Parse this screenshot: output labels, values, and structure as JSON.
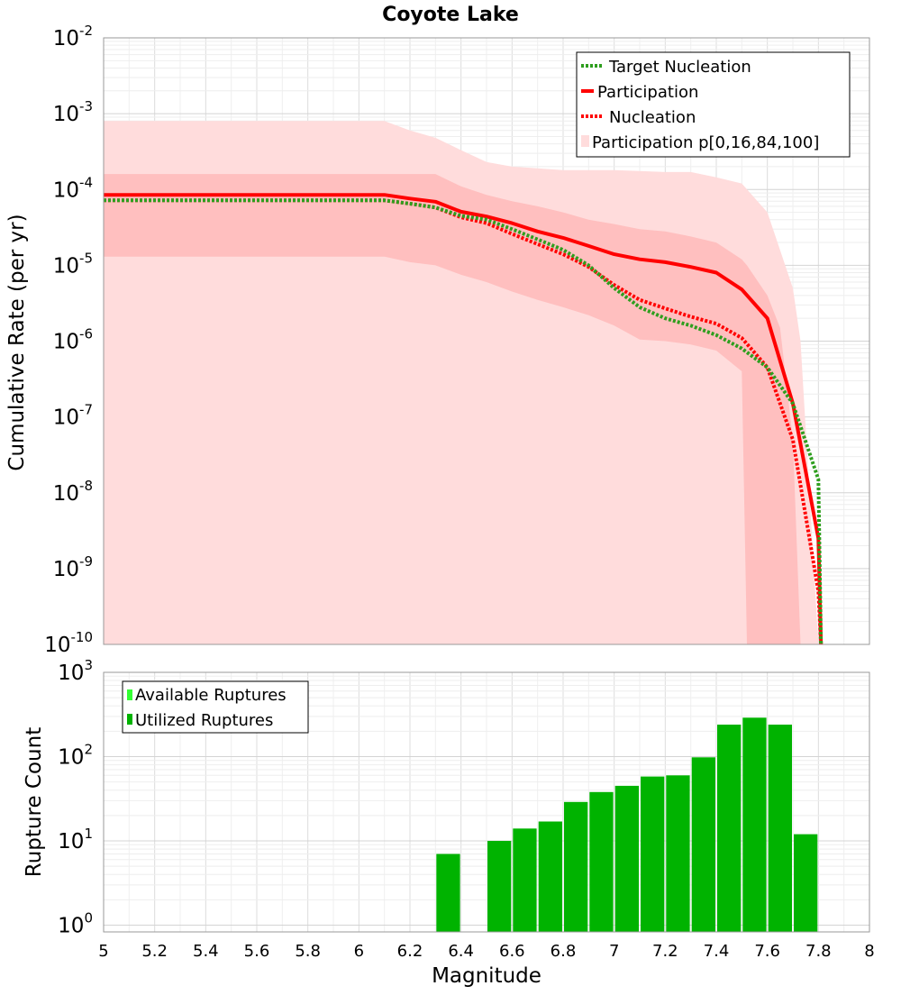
{
  "chart_data": [
    {
      "type": "line",
      "title": "Coyote Lake",
      "xlabel": "",
      "ylabel": "Cumulative Rate (per yr)",
      "yscale": "log",
      "xlim": [
        5,
        8
      ],
      "ylim_exponents": [
        -10,
        -2
      ],
      "ytick_exponents": [
        -10,
        -9,
        -8,
        -7,
        -6,
        -5,
        -4,
        -3,
        -2
      ],
      "legend_position": "top-right",
      "grid": true,
      "legend": [
        "Target Nucleation",
        "Participation",
        "Nucleation",
        "Participation p[0,16,84,100]"
      ],
      "series": [
        {
          "name": "Target Nucleation",
          "style": "dotted",
          "color": "#2e9e1e",
          "x": [
            5.0,
            5.5,
            6.0,
            6.1,
            6.2,
            6.3,
            6.4,
            6.5,
            6.6,
            6.7,
            6.8,
            6.9,
            7.0,
            7.1,
            7.2,
            7.3,
            7.4,
            7.5,
            7.6,
            7.7,
            7.8,
            7.81
          ],
          "y": [
            7.2e-05,
            7.2e-05,
            7.2e-05,
            7.2e-05,
            6.5e-05,
            5.8e-05,
            4.5e-05,
            4e-05,
            3e-05,
            2.2e-05,
            1.6e-05,
            1e-05,
            5e-06,
            2.8e-06,
            2e-06,
            1.6e-06,
            1.2e-06,
            8e-07,
            4.5e-07,
            1.5e-07,
            1.5e-08,
            1e-10
          ]
        },
        {
          "name": "Participation",
          "style": "solid",
          "color": "#ff0000",
          "x": [
            5.0,
            5.5,
            6.0,
            6.1,
            6.2,
            6.3,
            6.4,
            6.5,
            6.6,
            6.7,
            6.8,
            6.9,
            7.0,
            7.1,
            7.2,
            7.3,
            7.4,
            7.5,
            7.6,
            7.7,
            7.8,
            7.81
          ],
          "y": [
            8.5e-05,
            8.5e-05,
            8.5e-05,
            8.5e-05,
            7.6e-05,
            6.9e-05,
            5.1e-05,
            4.4e-05,
            3.6e-05,
            2.8e-05,
            2.3e-05,
            1.8e-05,
            1.4e-05,
            1.2e-05,
            1.1e-05,
            9.5e-06,
            8e-06,
            4.8e-06,
            2e-06,
            1.5e-07,
            2.5e-09,
            1e-10
          ]
        },
        {
          "name": "Nucleation",
          "style": "dotted",
          "color": "#ff0000",
          "x": [
            5.0,
            5.5,
            6.0,
            6.1,
            6.2,
            6.3,
            6.4,
            6.5,
            6.6,
            6.7,
            6.8,
            6.9,
            7.0,
            7.1,
            7.2,
            7.3,
            7.4,
            7.5,
            7.6,
            7.7,
            7.8,
            7.81
          ],
          "y": [
            7.2e-05,
            7.2e-05,
            7.2e-05,
            7.2e-05,
            6.5e-05,
            5.8e-05,
            4.3e-05,
            3.6e-05,
            2.6e-05,
            1.9e-05,
            1.4e-05,
            9.5e-06,
            5.5e-06,
            3.5e-06,
            2.7e-06,
            2.1e-06,
            1.7e-06,
            1.1e-06,
            4.5e-07,
            5e-08,
            5e-10,
            1e-10
          ]
        }
      ],
      "bands": [
        {
          "name": "Participation p[0,16,84,100]",
          "color": "#ffdcdc",
          "x": [
            5.0,
            5.5,
            6.0,
            6.1,
            6.2,
            6.3,
            6.4,
            6.5,
            6.6,
            6.7,
            6.8,
            6.9,
            7.0,
            7.1,
            7.2,
            7.3,
            7.4,
            7.5,
            7.6,
            7.7,
            7.73,
            7.8
          ],
          "upper": [
            0.0008,
            0.0008,
            0.0008,
            0.0008,
            0.0006,
            0.00048,
            0.00033,
            0.00023,
            0.0002,
            0.00019,
            0.00018,
            0.00018,
            0.00018,
            0.000175,
            0.00017,
            0.00017,
            0.000145,
            0.00012,
            5e-05,
            5e-06,
            1e-06,
            1e-10
          ],
          "lower": [
            1e-10,
            1e-10,
            1e-10,
            1e-10,
            1e-10,
            1e-10,
            1e-10,
            1e-10,
            1e-10,
            1e-10,
            1e-10,
            1e-10,
            1e-10,
            1e-10,
            1e-10,
            1e-10,
            1e-10,
            1e-10,
            1e-10,
            1e-10,
            1e-10,
            1e-10
          ]
        },
        {
          "name": "p16-p84",
          "color": "#ffbfbf",
          "x": [
            5.0,
            5.5,
            6.0,
            6.1,
            6.2,
            6.3,
            6.4,
            6.5,
            6.6,
            6.7,
            6.8,
            6.9,
            7.0,
            7.1,
            7.2,
            7.3,
            7.4,
            7.5,
            7.52,
            7.6,
            7.65,
            7.7,
            7.73
          ],
          "upper": [
            0.00016,
            0.00016,
            0.00016,
            0.00016,
            0.00016,
            0.00016,
            0.00011,
            8.5e-05,
            7e-05,
            6e-05,
            5e-05,
            4e-05,
            3.5e-05,
            3e-05,
            2.8e-05,
            2.4e-05,
            2e-05,
            1.2e-05,
            1e-05,
            4e-06,
            1.5e-06,
            5e-08,
            1e-10
          ],
          "lower": [
            1.3e-05,
            1.3e-05,
            1.3e-05,
            1.3e-05,
            1.1e-05,
            1e-05,
            7.5e-06,
            6e-06,
            4.5e-06,
            3.5e-06,
            2.8e-06,
            2.2e-06,
            1.6e-06,
            1.05e-06,
            1e-06,
            9e-07,
            7.5e-07,
            4e-07,
            1e-10,
            1e-10,
            1e-10,
            1e-10,
            1e-10
          ]
        }
      ]
    },
    {
      "type": "bar",
      "title": "",
      "xlabel": "Magnitude",
      "ylabel": "Rupture Count",
      "yscale": "log",
      "xlim": [
        5,
        8
      ],
      "ylim_exponents": [
        0,
        3
      ],
      "ytick_exponents": [
        0,
        1,
        2,
        3
      ],
      "xticks": [
        "5",
        "5.2",
        "5.4",
        "5.6",
        "5.8",
        "6",
        "6.2",
        "6.4",
        "6.6",
        "6.8",
        "7",
        "7.2",
        "7.4",
        "7.6",
        "7.8",
        "8"
      ],
      "legend_position": "top-left",
      "grid": true,
      "legend": [
        "Available Ruptures",
        "Utilized Ruptures"
      ],
      "colors": {
        "available": "#33ff33",
        "utilized": "#00b300"
      },
      "bin_width": 0.1,
      "bins": [
        {
          "x": 6.35,
          "value": 7
        },
        {
          "x": 6.55,
          "value": 10
        },
        {
          "x": 6.65,
          "value": 14
        },
        {
          "x": 6.75,
          "value": 17
        },
        {
          "x": 6.85,
          "value": 29
        },
        {
          "x": 6.95,
          "value": 38
        },
        {
          "x": 7.05,
          "value": 45
        },
        {
          "x": 7.15,
          "value": 58
        },
        {
          "x": 7.25,
          "value": 60
        },
        {
          "x": 7.35,
          "value": 98
        },
        {
          "x": 7.45,
          "value": 240
        },
        {
          "x": 7.55,
          "value": 290
        },
        {
          "x": 7.65,
          "value": 240
        },
        {
          "x": 7.75,
          "value": 12
        }
      ]
    }
  ]
}
